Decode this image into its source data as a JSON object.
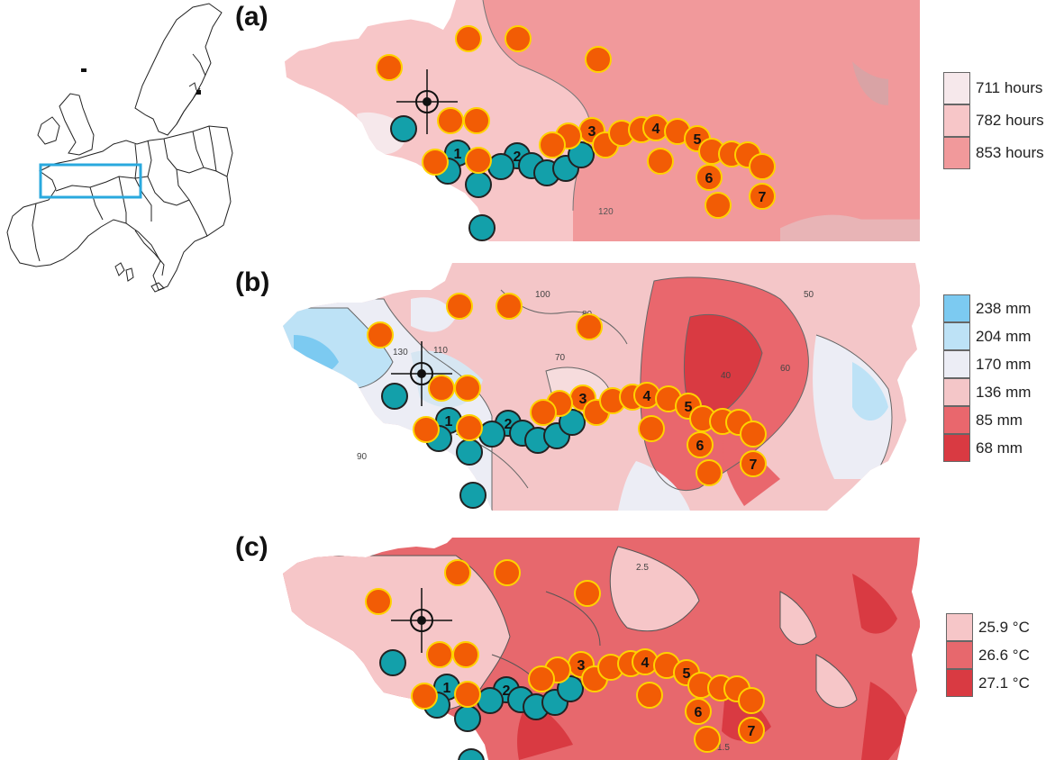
{
  "panels": [
    {
      "label": "(a)",
      "legend": [
        {
          "text": "711 hours",
          "color": "#f6e8eb"
        },
        {
          "text": "782 hours",
          "color": "#f7c6c8"
        },
        {
          "text": "853 hours",
          "color": "#f1999b"
        }
      ],
      "contour_labels": [
        "120"
      ]
    },
    {
      "label": "(b)",
      "legend": [
        {
          "text": "238 mm",
          "color": "#7ccaf1"
        },
        {
          "text": "204 mm",
          "color": "#bde2f6"
        },
        {
          "text": "170 mm",
          "color": "#ecedf5"
        },
        {
          "text": "136 mm",
          "color": "#f4c6c8"
        },
        {
          "text": "85 mm",
          "color": "#e9676d"
        },
        {
          "text": "68 mm",
          "color": "#d93a42"
        }
      ],
      "contour_labels": [
        "130",
        "110",
        "100",
        "90",
        "80",
        "70",
        "60",
        "50",
        "40"
      ]
    },
    {
      "label": "(c)",
      "legend": [
        {
          "text": "25.9 °C",
          "color": "#f6c6c8"
        },
        {
          "text": "26.6 °C",
          "color": "#e7686d"
        },
        {
          "text": "27.1 °C",
          "color": "#d93a42"
        }
      ],
      "contour_labels": [
        "2.5",
        "1.5"
      ]
    }
  ],
  "site_numbers": [
    "1",
    "2",
    "3",
    "4",
    "5",
    "6",
    "7"
  ],
  "colors": {
    "teal_site": "#13a0aa",
    "orange_site": "#f25c05",
    "site_outline_orange": "#ffd200",
    "locator_box": "#29a9de"
  }
}
